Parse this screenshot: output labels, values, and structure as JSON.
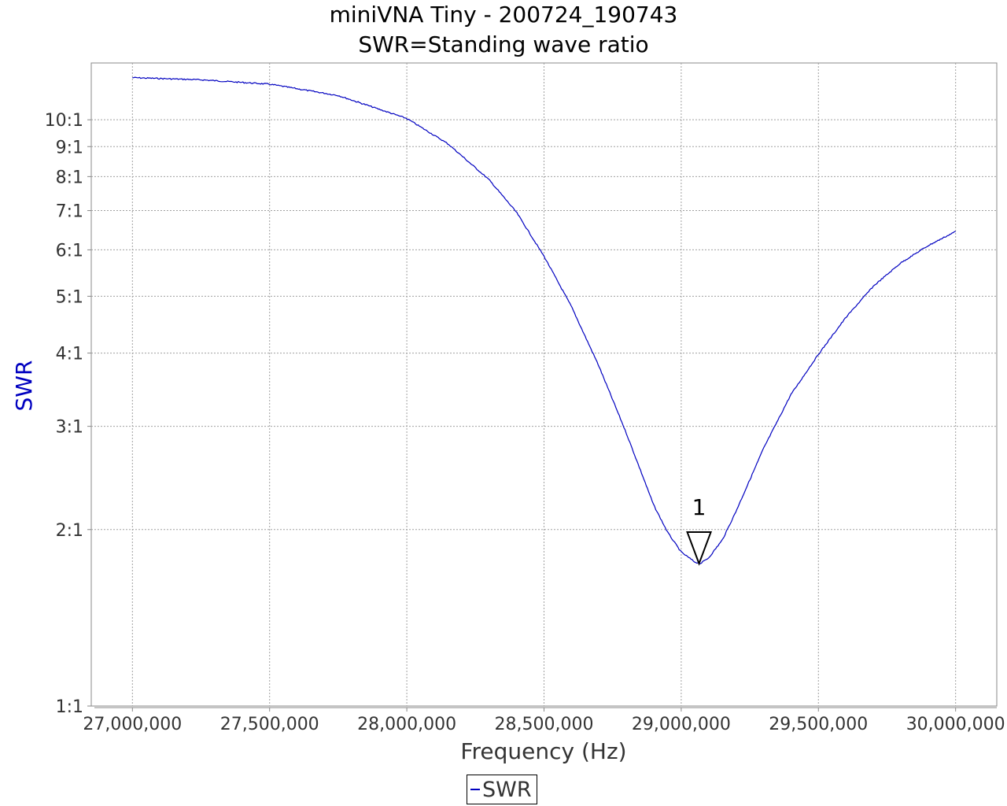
{
  "chart_data": {
    "type": "line",
    "title": "miniVNA Tiny - 200724_190743",
    "subtitle": "SWR=Standing wave ratio",
    "xlabel": "Frequency (Hz)",
    "ylabel": "SWR",
    "y_scale": "log",
    "xlim": [
      26850000,
      30150000
    ],
    "ylim": [
      1,
      12.5
    ],
    "x_ticks": [
      27000000,
      27500000,
      28000000,
      28500000,
      29000000,
      29500000,
      30000000
    ],
    "x_tick_labels": [
      "27,000,000",
      "27,500,000",
      "28,000,000",
      "28,500,000",
      "29,000,000",
      "29,500,000",
      "30,000,000"
    ],
    "y_ticks": [
      1,
      2,
      3,
      4,
      5,
      6,
      7,
      8,
      9,
      10
    ],
    "y_tick_labels": [
      "1:1",
      "2:1",
      "3:1",
      "4:1",
      "5:1",
      "6:1",
      "7:1",
      "8:1",
      "9:1",
      "10:1"
    ],
    "grid": true,
    "legend_position": "bottom-center",
    "colors": {
      "series": "#0000c0",
      "ylabel": "#0000c0",
      "grid": "#a0a0a0"
    },
    "series": [
      {
        "name": "SWR",
        "x": [
          27000000,
          27250000,
          27500000,
          27750000,
          28000000,
          28150000,
          28300000,
          28400000,
          28500000,
          28600000,
          28700000,
          28800000,
          28900000,
          28950000,
          29000000,
          29050000,
          29070000,
          29100000,
          29150000,
          29200000,
          29300000,
          29400000,
          29500000,
          29600000,
          29700000,
          29800000,
          29900000,
          30000000
        ],
        "y": [
          11.8,
          11.7,
          11.5,
          11.0,
          10.05,
          9.1,
          7.9,
          6.95,
          5.85,
          4.8,
          3.8,
          2.92,
          2.2,
          1.98,
          1.83,
          1.76,
          1.75,
          1.79,
          1.92,
          2.15,
          2.75,
          3.4,
          3.98,
          4.6,
          5.2,
          5.7,
          6.1,
          6.45
        ]
      }
    ],
    "markers": [
      {
        "label": "1",
        "x": 29065000,
        "y": 1.75
      }
    ]
  },
  "legend": {
    "label": "SWR"
  }
}
